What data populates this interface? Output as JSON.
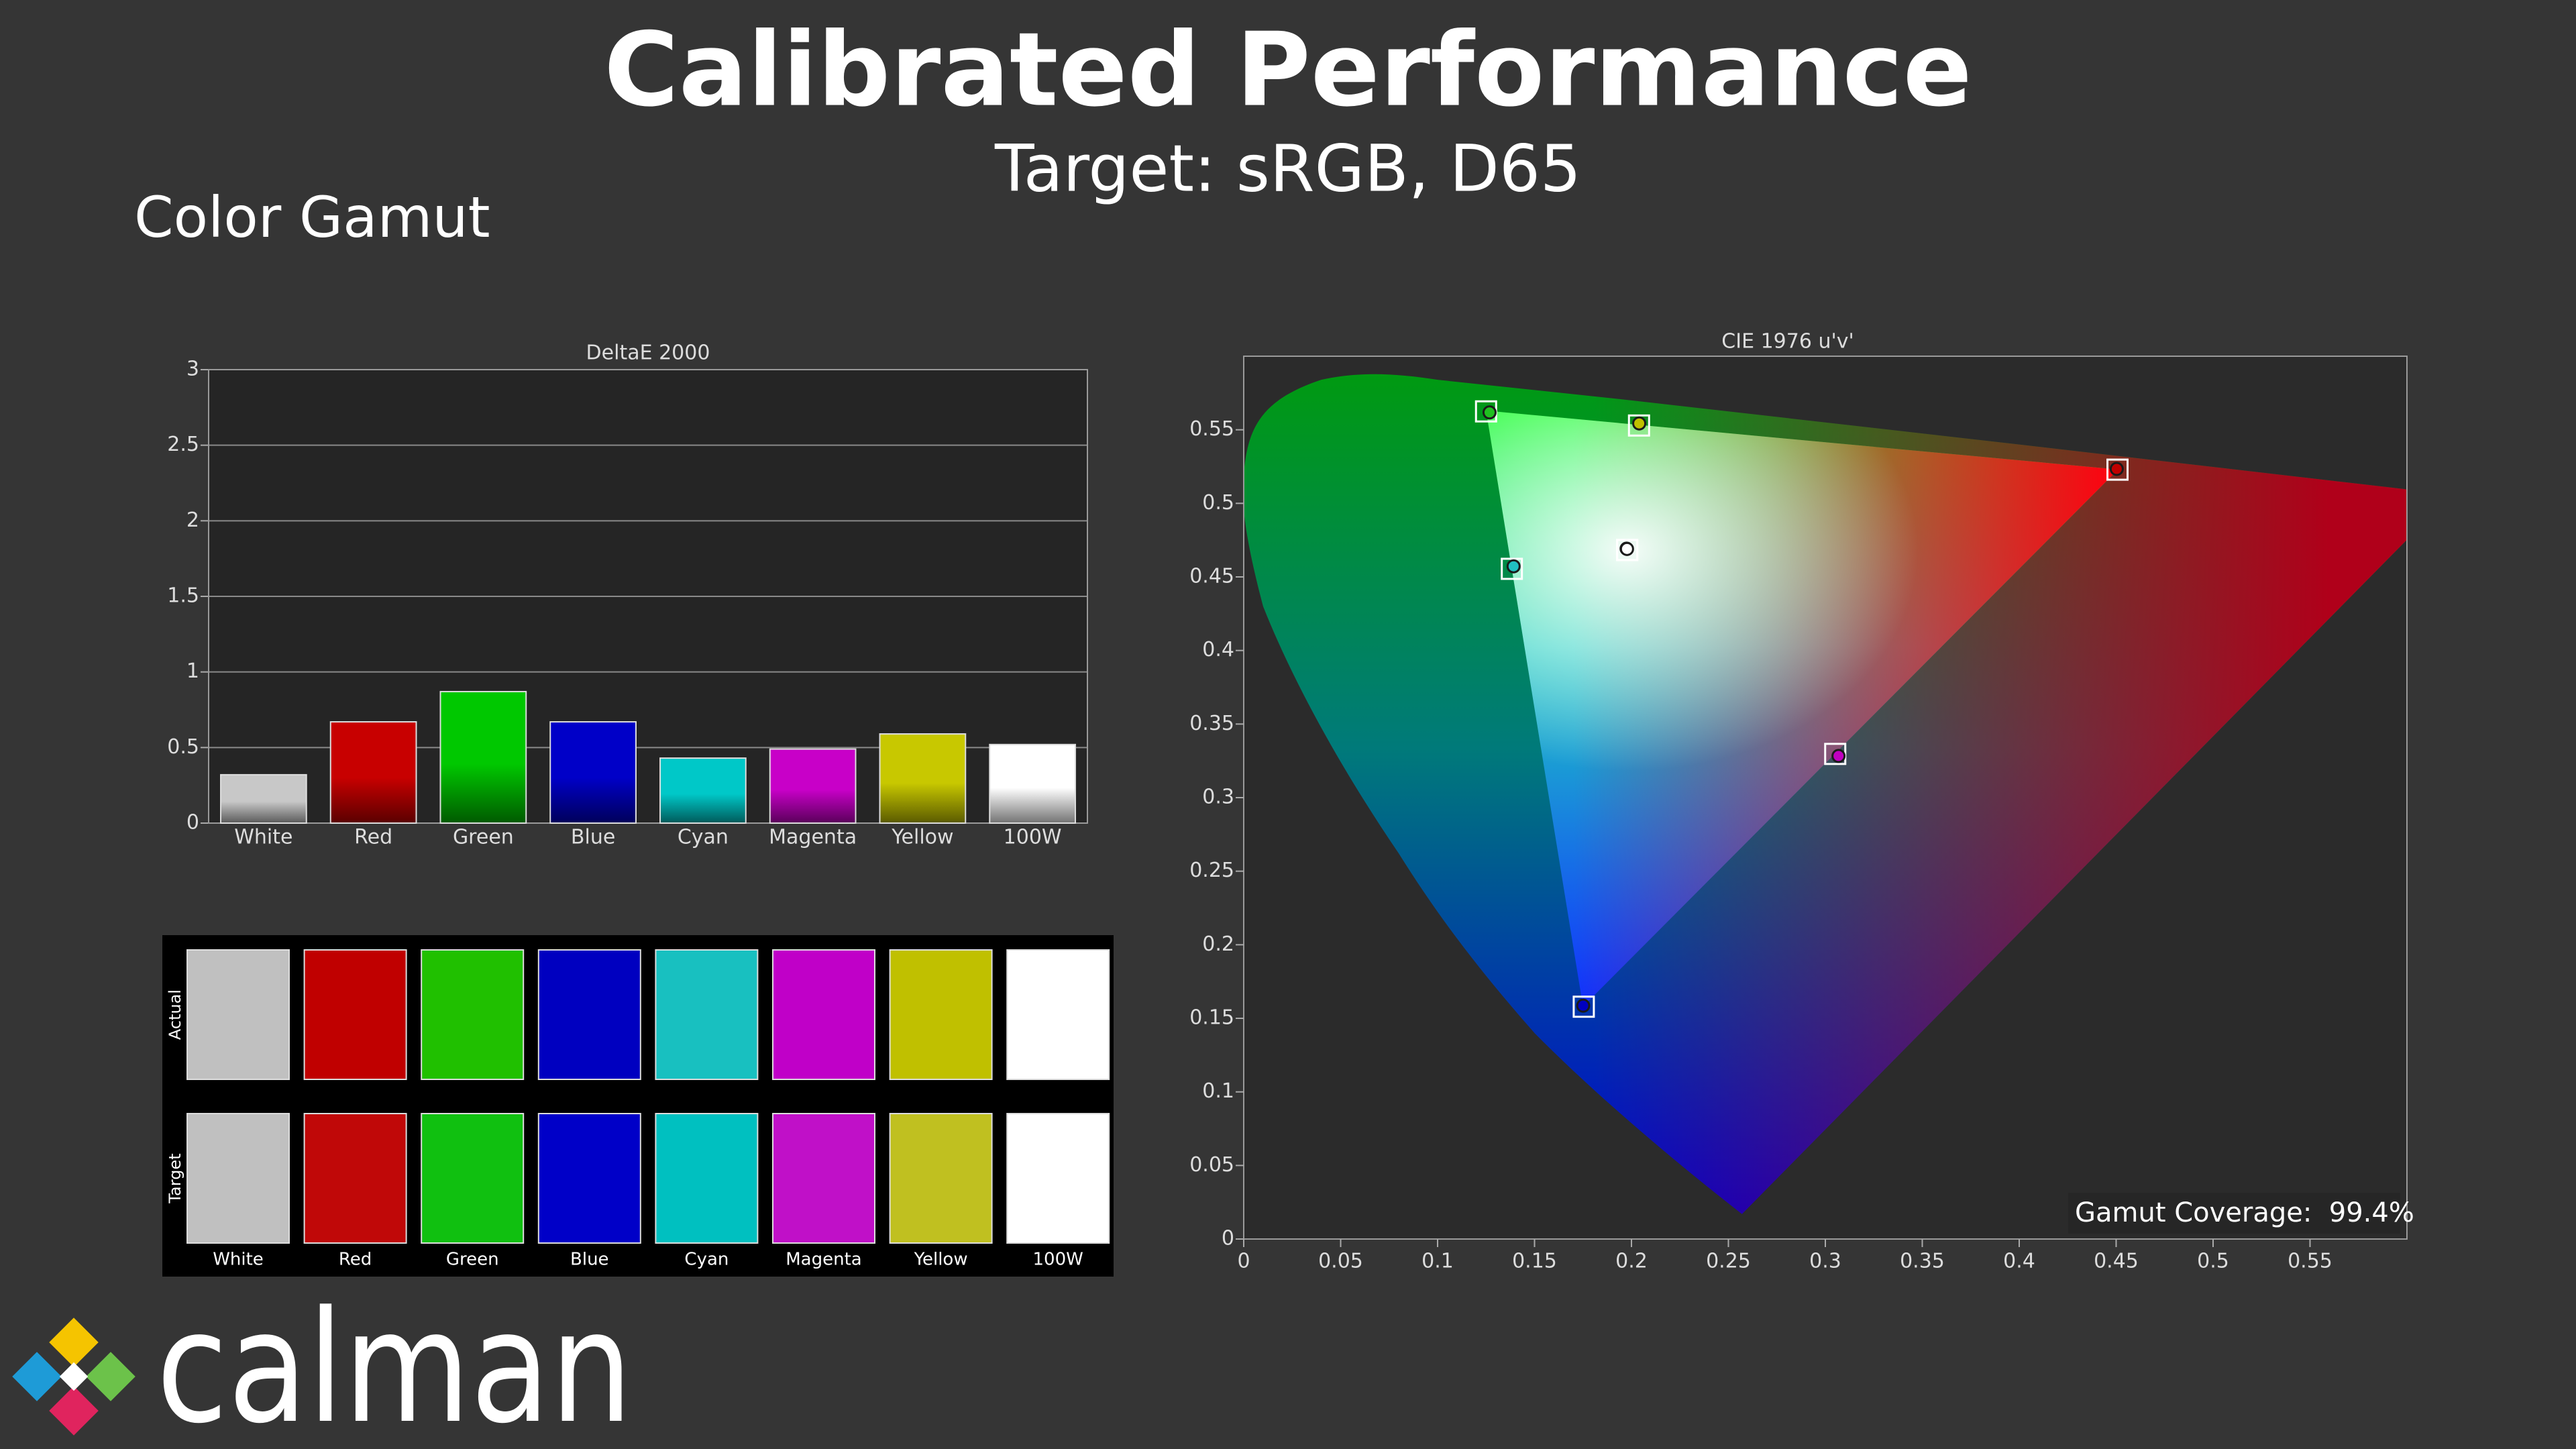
{
  "header": {
    "title": "Calibrated Performance",
    "subtitle": "Target: sRGB, D65"
  },
  "section_title": "Color Gamut",
  "chart_data": [
    {
      "type": "bar",
      "title": "DeltaE 2000",
      "categories": [
        "White",
        "Red",
        "Green",
        "Blue",
        "Cyan",
        "Magenta",
        "Yellow",
        "100W"
      ],
      "values": [
        0.32,
        0.67,
        0.87,
        0.67,
        0.43,
        0.49,
        0.59,
        0.52
      ],
      "colors": [
        "#c8c8c8",
        "#c80000",
        "#00c800",
        "#0000c8",
        "#00c8c8",
        "#c800c8",
        "#c8c800",
        "#ffffff"
      ],
      "ylim": [
        0,
        3
      ],
      "yticks": [
        0,
        0.5,
        1,
        1.5,
        2,
        2.5,
        3
      ],
      "grid": true
    },
    {
      "type": "scatter",
      "title": "CIE 1976 u'v'",
      "xlim": [
        0,
        0.6
      ],
      "ylim": [
        0,
        0.6
      ],
      "xticks": [
        0,
        0.05,
        0.1,
        0.15,
        0.2,
        0.25,
        0.3,
        0.35,
        0.4,
        0.45,
        0.5,
        0.55
      ],
      "yticks": [
        0,
        0.05,
        0.1,
        0.15,
        0.2,
        0.25,
        0.3,
        0.35,
        0.4,
        0.45,
        0.5,
        0.55
      ],
      "grid": false,
      "annotation": "Gamut Coverage:  99.4%",
      "series": [
        {
          "marker": "square",
          "color": "#ffffff",
          "x": [
            0.1978,
            0.4507,
            0.125,
            0.1754,
            0.1383,
            0.3051,
            0.2039,
            0.1978
          ],
          "values": [
            0.4683,
            0.5229,
            0.5625,
            0.1579,
            0.4555,
            0.3297,
            0.5529,
            0.4683
          ]
        },
        {
          "marker": "circle",
          "colors": [
            "#d0d0d0",
            "#c00000",
            "#20c020",
            "#0000c0",
            "#20c0c0",
            "#c000c0",
            "#c0c000",
            "#ffffff"
          ],
          "x": [
            0.1975,
            0.4503,
            0.1268,
            0.1751,
            0.1392,
            0.3068,
            0.204,
            0.1977
          ],
          "values": [
            0.4692,
            0.5234,
            0.5618,
            0.1586,
            0.4572,
            0.3283,
            0.5543,
            0.469
          ]
        }
      ]
    }
  ],
  "swatches": {
    "row_labels": [
      "Actual",
      "Target"
    ],
    "labels": [
      "White",
      "Red",
      "Green",
      "Blue",
      "Cyan",
      "Magenta",
      "Yellow",
      "100W"
    ],
    "rows": [
      [
        "#c0c0c0",
        "#c00000",
        "#20c000",
        "#0000c0",
        "#18c0c0",
        "#c000c8",
        "#c0c000",
        "#ffffff"
      ],
      [
        "#c0c0c0",
        "#c00808",
        "#10c010",
        "#0000c8",
        "#00c0c0",
        "#c010c8",
        "#c0c020",
        "#ffffff"
      ]
    ]
  },
  "logo": "calman"
}
